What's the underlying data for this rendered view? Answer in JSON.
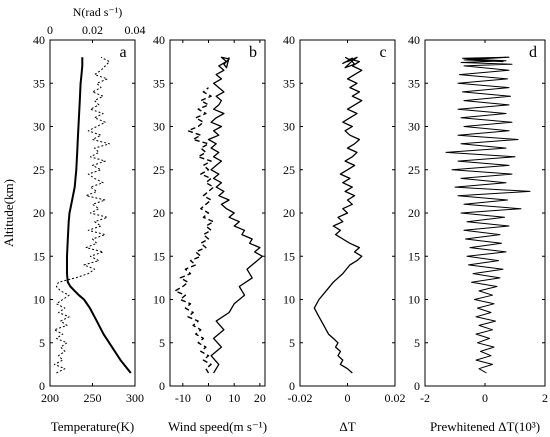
{
  "chart_data": [
    {
      "id": "a",
      "panel_label": "a",
      "type": "line",
      "xlabel": "Temperature(K)",
      "ylabel": "Altitude(km)",
      "xlim": [
        200,
        300
      ],
      "ylim": [
        0,
        40
      ],
      "xticks": [
        "200",
        "250",
        "300"
      ],
      "yticks": [
        "0",
        "5",
        "10",
        "15",
        "20",
        "25",
        "30",
        "35",
        "40"
      ],
      "top_axis": {
        "label": "N(rad s⁻¹)",
        "lim": [
          0,
          0.04
        ],
        "ticks": [
          "0",
          "0.02",
          "0.04"
        ]
      },
      "series": [
        {
          "style": "solid",
          "axis": "bottom",
          "x": [
            295,
            283,
            273,
            263,
            255,
            247,
            240,
            234,
            229,
            224,
            221,
            220,
            220,
            221,
            222,
            223,
            225,
            227,
            229,
            230,
            231,
            232,
            233,
            234,
            235,
            236,
            237,
            238,
            238
          ],
          "y": [
            1.5,
            3,
            4.5,
            6,
            7.5,
            9,
            10,
            10.5,
            11,
            11.5,
            12,
            13,
            15,
            17,
            19,
            20,
            21,
            22,
            23,
            24,
            25,
            27,
            29,
            31,
            33,
            35,
            36,
            37,
            38
          ]
        },
        {
          "style": "dotted",
          "axis": "top",
          "x": [
            0.003,
            0.007,
            0.002,
            0.006,
            0.004,
            0.007,
            0.005,
            0.008,
            0.003,
            0.006,
            0.002,
            0.008,
            0.005,
            0.009,
            0.004,
            0.007,
            0.003,
            0.006,
            0.009,
            0.005,
            0.003,
            0.004,
            0.012,
            0.018,
            0.021,
            0.016,
            0.023,
            0.019,
            0.025,
            0.017,
            0.022,
            0.02,
            0.026,
            0.018,
            0.024,
            0.021,
            0.027,
            0.019,
            0.023,
            0.02,
            0.026,
            0.017,
            0.022,
            0.019,
            0.025,
            0.021,
            0.018,
            0.024,
            0.02,
            0.026,
            0.019,
            0.023,
            0.021,
            0.028,
            0.02,
            0.024,
            0.018,
            0.022,
            0.026,
            0.021,
            0.025,
            0.019,
            0.023,
            0.021,
            0.025,
            0.02,
            0.024,
            0.022,
            0.027,
            0.021,
            0.024,
            0.026,
            0.028,
            0.024
          ],
          "y": [
            1.5,
            2,
            2.5,
            3,
            3.5,
            4,
            4.5,
            5,
            5.5,
            6,
            6.5,
            7,
            7.5,
            8,
            8.5,
            9,
            9.5,
            10,
            10.5,
            11,
            11.5,
            12,
            12.5,
            13,
            13.5,
            14,
            14.5,
            15,
            15.5,
            16,
            16.5,
            17,
            17.5,
            18,
            18.5,
            19,
            19.5,
            20,
            20.5,
            21,
            21.5,
            22,
            22.5,
            23,
            23.5,
            24,
            24.5,
            25,
            25.5,
            26,
            26.5,
            27,
            27.5,
            28,
            28.5,
            29,
            29.5,
            30,
            30.5,
            31,
            31.5,
            32,
            32.5,
            33,
            33.5,
            34,
            34.5,
            35,
            35.5,
            36,
            36.5,
            37,
            37.5,
            38
          ]
        }
      ]
    },
    {
      "id": "b",
      "panel_label": "b",
      "type": "line",
      "xlabel": "Wind speed(m s⁻¹)",
      "xlim": [
        -15,
        22
      ],
      "ylim": [
        0,
        40
      ],
      "xticks": [
        "-10",
        "0",
        "10",
        "20"
      ],
      "yticks": [
        "0",
        "5",
        "10",
        "15",
        "20",
        "25",
        "30",
        "35",
        "40"
      ],
      "series": [
        {
          "style": "solid",
          "x": [
            2,
            4,
            1,
            5,
            2,
            6,
            3,
            8,
            10,
            14,
            12,
            17,
            15,
            19,
            21,
            18,
            20,
            16,
            17,
            13,
            14,
            10,
            12,
            8,
            10,
            7,
            5,
            8,
            4,
            6,
            3,
            5,
            2,
            4,
            1,
            3,
            5,
            2,
            4,
            1,
            3,
            0,
            4,
            2,
            5,
            1,
            3,
            6,
            2,
            4,
            5,
            3,
            6,
            4,
            2,
            5,
            3,
            6,
            4,
            7,
            5,
            8,
            6,
            7,
            8
          ],
          "y": [
            1.5,
            2.5,
            3.5,
            4.5,
            5.5,
            6.5,
            7.5,
            8.5,
            9.5,
            10.5,
            11.5,
            12.5,
            13.5,
            14.5,
            15,
            15.5,
            16,
            16.5,
            17,
            17.5,
            18,
            18.5,
            19,
            19.5,
            20,
            20.5,
            21,
            21.5,
            22,
            22.5,
            23,
            23.5,
            24,
            24.5,
            25,
            25.5,
            26,
            26.5,
            27,
            27.5,
            28,
            28.5,
            29,
            29.5,
            30,
            30.5,
            31,
            31.5,
            32,
            32.5,
            33,
            33.5,
            34,
            34.5,
            35,
            35.5,
            36,
            36.5,
            37,
            37.5,
            38,
            37.8,
            37.2,
            36.8,
            38
          ]
        },
        {
          "style": "dashed",
          "x": [
            0,
            -1,
            1,
            -2,
            0,
            -3,
            -1,
            -4,
            -2,
            -5,
            -3,
            -6,
            -4,
            -8,
            -6,
            -9,
            -7,
            -11,
            -9,
            -13,
            -10,
            -8,
            -11,
            -7,
            -9,
            -5,
            -7,
            -3,
            -5,
            -1,
            -3,
            0,
            -2,
            1,
            -1,
            2,
            -2,
            0,
            -3,
            -1,
            1,
            -2,
            0,
            2,
            -1,
            1,
            -3,
            0,
            -2,
            1,
            -4,
            -1,
            -3,
            0,
            -6,
            -3,
            -8,
            -4,
            -2,
            -5,
            -1,
            -4,
            0,
            -3,
            1,
            -2,
            0
          ],
          "y": [
            1.5,
            2,
            2.5,
            3,
            3.5,
            4,
            4.5,
            5,
            5.5,
            6,
            6.5,
            7,
            7.5,
            8,
            8.5,
            9,
            9.5,
            10,
            10.5,
            11,
            11.5,
            12,
            12.5,
            13,
            13.5,
            14,
            14.5,
            15,
            15.5,
            16,
            16.5,
            17,
            17.5,
            18,
            18.5,
            19,
            19.5,
            20,
            20.5,
            21,
            21.5,
            22,
            22.5,
            23,
            23.5,
            24,
            24.5,
            25,
            25.5,
            26,
            26.5,
            27,
            27.5,
            28,
            28.5,
            29,
            29.5,
            30,
            30.5,
            31,
            31.5,
            32,
            32.5,
            33,
            33.5,
            34,
            34.5
          ]
        }
      ]
    },
    {
      "id": "c",
      "panel_label": "c",
      "type": "line",
      "xlabel": "ΔT",
      "xlim": [
        -0.02,
        0.02
      ],
      "ylim": [
        0,
        40
      ],
      "xticks": [
        "-0.02",
        "0",
        "0.02"
      ],
      "yticks": [
        "0",
        "5",
        "10",
        "15",
        "20",
        "25",
        "30",
        "35",
        "40"
      ],
      "series": [
        {
          "style": "solid",
          "x": [
            0.002,
            0.0,
            -0.003,
            -0.002,
            -0.004,
            -0.003,
            -0.005,
            -0.004,
            -0.006,
            -0.008,
            -0.01,
            -0.012,
            -0.014,
            -0.012,
            -0.009,
            -0.006,
            -0.002,
            0.001,
            0.004,
            0.006,
            0.003,
            0.005,
            0.001,
            -0.002,
            -0.005,
            -0.003,
            -0.006,
            -0.002,
            -0.004,
            0.0,
            -0.002,
            0.002,
            0.0,
            0.003,
            -0.001,
            0.002,
            -0.002,
            0.001,
            -0.003,
            0.0,
            0.003,
            -0.001,
            0.002,
            0.004,
            0.0,
            0.003,
            0.005,
            0.001,
            -0.001,
            0.002,
            -0.002,
            0.001,
            0.004,
            0.0,
            0.003,
            0.006,
            0.002,
            0.005,
            0.001,
            0.004,
            0.0,
            0.003,
            0.006,
            0.002,
            0.005,
            0.001,
            0.003,
            -0.001,
            0.002,
            0.004,
            0.0,
            0.002,
            -0.002,
            0.001,
            -0.001
          ],
          "y": [
            1.5,
            2,
            2.5,
            3,
            3.5,
            4,
            4.5,
            5,
            5.5,
            6,
            7,
            8,
            9,
            10,
            11,
            12,
            13,
            14,
            14.5,
            15,
            15.5,
            16,
            16.5,
            17,
            17.5,
            18,
            18.5,
            19,
            19.5,
            20,
            20.5,
            21,
            21.5,
            22,
            22.5,
            23,
            23.5,
            24,
            24.5,
            25,
            25.5,
            26,
            26.5,
            27,
            27.5,
            28,
            28.5,
            29,
            29.5,
            30,
            30.5,
            31,
            31.5,
            32,
            32.5,
            33,
            33.5,
            34,
            34.5,
            35,
            35.5,
            36,
            36.5,
            37,
            37.5,
            37.8,
            37.2,
            36.8,
            37.6,
            38,
            37.5,
            37.9,
            37.3,
            37.7,
            38
          ]
        }
      ]
    },
    {
      "id": "d",
      "panel_label": "d",
      "type": "line",
      "xlabel": "Prewhitened ΔT(10³)",
      "xlim": [
        -2,
        2
      ],
      "ylim": [
        0,
        40
      ],
      "xticks": [
        "-2",
        "0",
        "2"
      ],
      "yticks": [
        "0",
        "5",
        "10",
        "15",
        "20",
        "25",
        "30",
        "35",
        "40"
      ],
      "series": [
        {
          "style": "solid",
          "x": [
            0.05,
            -0.2,
            0.25,
            -0.3,
            0.2,
            -0.15,
            0.3,
            -0.25,
            0.15,
            -0.3,
            0.25,
            -0.2,
            0.35,
            -0.3,
            0.2,
            -0.25,
            0.3,
            -0.35,
            0.25,
            -0.2,
            0.4,
            -0.45,
            0.5,
            -0.4,
            0.6,
            -0.55,
            0.45,
            -0.6,
            0.7,
            -0.5,
            0.55,
            -0.65,
            0.5,
            -0.7,
            0.8,
            -0.6,
            0.65,
            -0.8,
            1.2,
            -0.7,
            0.75,
            -0.9,
            1.5,
            -1.0,
            0.7,
            -0.8,
            0.9,
            -1.1,
            0.8,
            -0.9,
            1.0,
            -1.3,
            0.7,
            -0.8,
            1.1,
            -0.9,
            0.8,
            -0.7,
            0.9,
            -0.8,
            0.7,
            -0.9,
            0.8,
            -0.7,
            0.85,
            -0.75,
            0.8,
            -0.9,
            0.75,
            -0.85,
            0.8,
            -0.7,
            0.9,
            -0.8,
            0.7,
            -0.6,
            0.8,
            -0.7,
            0.6,
            -0.75,
            0.7
          ],
          "y": [
            1.5,
            2,
            2.5,
            3,
            3.5,
            4,
            4.5,
            5,
            5.5,
            6,
            6.5,
            7,
            7.5,
            8,
            8.5,
            9,
            9.5,
            10,
            10.5,
            11,
            11.5,
            12,
            12.5,
            13,
            13.5,
            14,
            14.5,
            15,
            15.5,
            16,
            16.5,
            17,
            17.5,
            18,
            18.5,
            19,
            19.5,
            20,
            20.5,
            21,
            21.5,
            22,
            22.5,
            23,
            23.5,
            24,
            24.5,
            25,
            25.5,
            26,
            26.5,
            27,
            27.5,
            28,
            28.5,
            29,
            29.5,
            30,
            30.5,
            31,
            31.5,
            32,
            32.5,
            33,
            33.5,
            34,
            34.5,
            35,
            35.5,
            36,
            36.5,
            37,
            37.2,
            37.4,
            37.6,
            37.8,
            38,
            37.7,
            37.5,
            37.9,
            38
          ]
        }
      ]
    }
  ]
}
